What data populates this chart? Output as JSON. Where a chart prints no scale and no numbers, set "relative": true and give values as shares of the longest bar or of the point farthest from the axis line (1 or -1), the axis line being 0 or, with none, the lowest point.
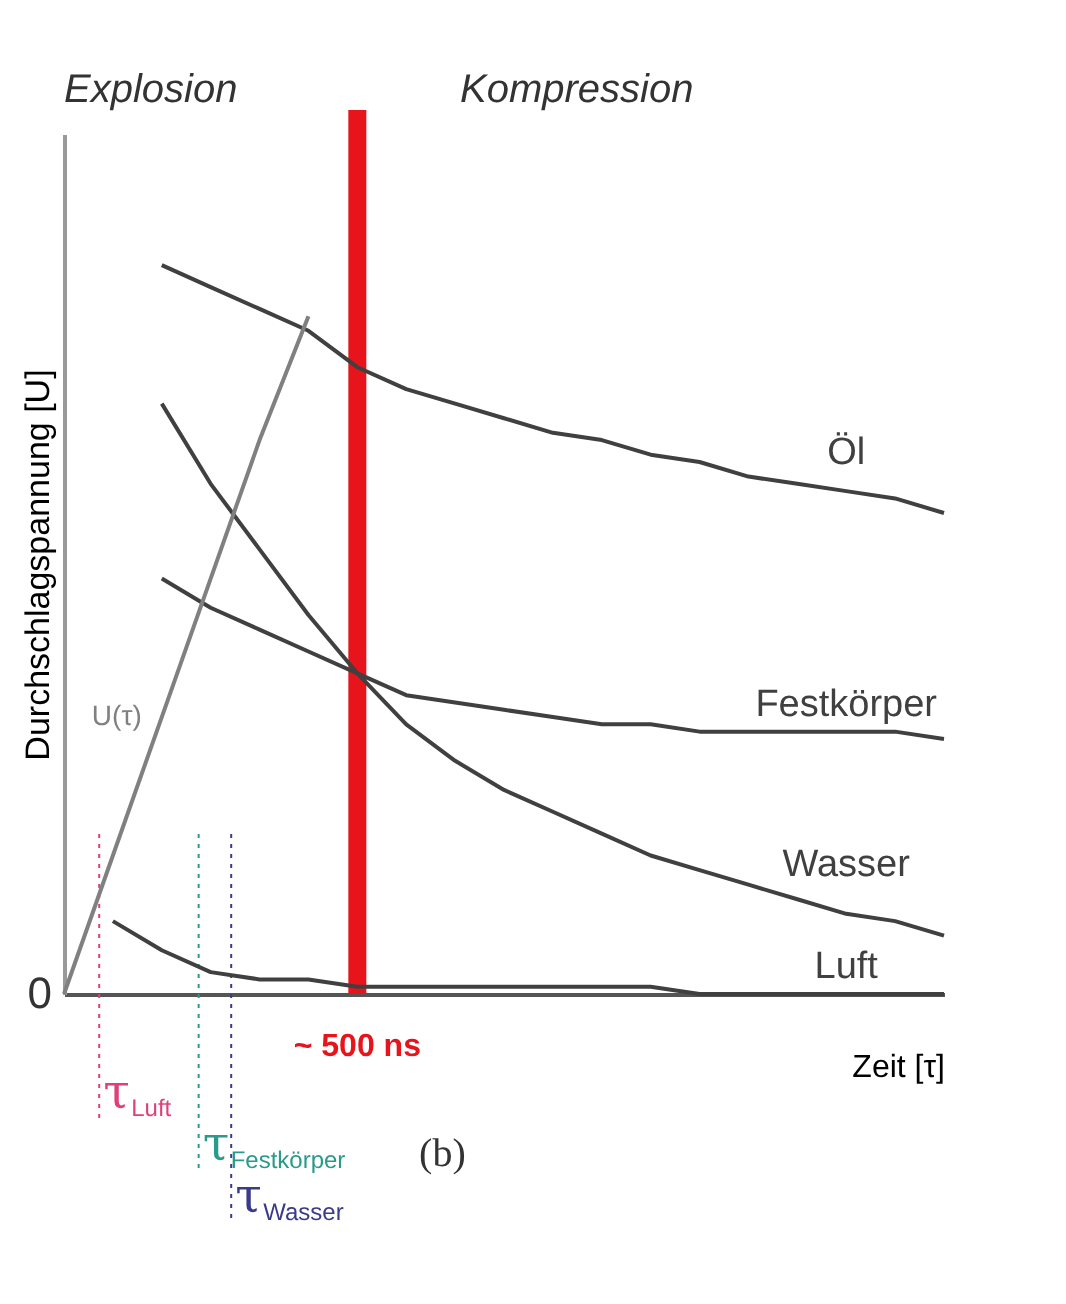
{
  "chart_data": {
    "type": "line",
    "relative": true,
    "xlabel": "Zeit [τ]",
    "ylabel": "Durchschlagspannung [U]",
    "categories": [
      null,
      null,
      null,
      null,
      null,
      null,
      null,
      null,
      null,
      null,
      null,
      null,
      null,
      null,
      null,
      null,
      null,
      null,
      null
    ],
    "series": [
      {
        "name": "Öl",
        "color": "#404040",
        "values": [
          null,
          null,
          1.0,
          0.97,
          0.94,
          0.91,
          0.86,
          0.83,
          0.81,
          0.79,
          0.77,
          0.76,
          0.74,
          0.73,
          0.71,
          0.7,
          0.69,
          0.68,
          0.66
        ]
      },
      {
        "name": "Festkörper",
        "color": "#404040",
        "values": [
          null,
          null,
          0.57,
          0.53,
          0.5,
          0.47,
          0.44,
          0.41,
          0.4,
          0.39,
          0.38,
          0.37,
          0.37,
          0.36,
          0.36,
          0.36,
          0.36,
          0.36,
          0.35
        ]
      },
      {
        "name": "Wasser",
        "color": "#404040",
        "values": [
          null,
          null,
          0.81,
          0.7,
          0.61,
          0.52,
          0.44,
          0.37,
          0.32,
          0.28,
          0.25,
          0.22,
          0.19,
          0.17,
          0.15,
          0.13,
          0.11,
          0.1,
          0.08
        ]
      },
      {
        "name": "Luft",
        "color": "#404040",
        "values": [
          null,
          0.1,
          0.06,
          0.03,
          0.02,
          0.02,
          0.01,
          0.01,
          0.01,
          0.01,
          0.01,
          0.01,
          0.01,
          0.0,
          0.0,
          0.0,
          0.0,
          0.0,
          0.0
        ]
      },
      {
        "name": "U(τ)",
        "color": "#808080",
        "values": [
          0.0,
          0.19,
          0.38,
          0.57,
          0.76,
          0.93,
          null,
          null,
          null,
          null,
          null,
          null,
          null,
          null,
          null,
          null,
          null,
          null,
          null
        ]
      }
    ],
    "annotations": [
      "Explosion",
      "Kompression",
      "0",
      "(b)",
      "~ 500 ns",
      "τ$_{Luft}$",
      "τ$_{Festkörper}$",
      "τ$_{Wasser}$"
    ],
    "legend": false,
    "grid": false,
    "marker": "none",
    "line_style": "solid"
  }
}
